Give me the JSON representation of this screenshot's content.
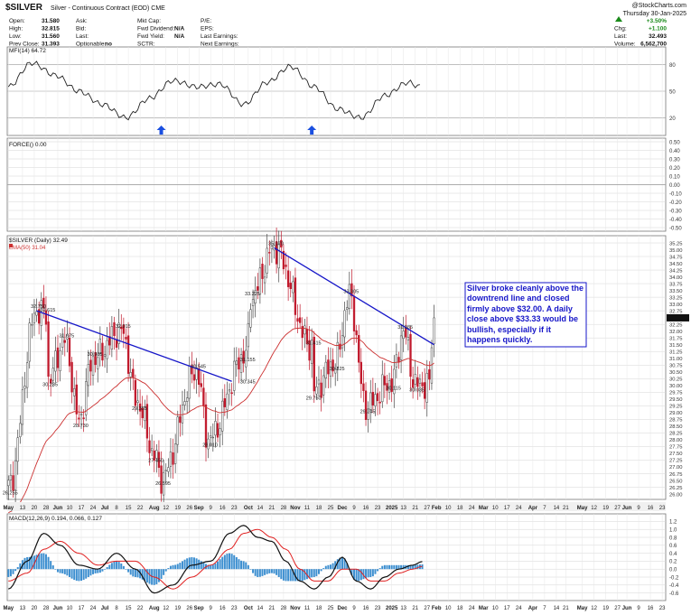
{
  "header": {
    "symbol": "$SILVER",
    "desc": "Silver - Continuous Contract (EOD) CME",
    "brand": "@StockCharts.com",
    "date": "Thursday 30-Jan-2025",
    "stats": [
      {
        "label": "Open:",
        "value": "31.580"
      },
      {
        "label": "High:",
        "value": "32.815"
      },
      {
        "label": "Low:",
        "value": "31.560"
      },
      {
        "label": "Prev Close:",
        "value": "31.393"
      }
    ],
    "quote": [
      {
        "label": "Ask:",
        "value": ""
      },
      {
        "label": "Bid:",
        "value": ""
      },
      {
        "label": "Last:",
        "value": ""
      },
      {
        "label": "Optionable:",
        "value": "no"
      }
    ],
    "fund": [
      {
        "label": "Mkt Cap:",
        "value": ""
      },
      {
        "label": "Fwd Dividend:",
        "value": "N/A"
      },
      {
        "label": "Fwd Yield:",
        "value": "N/A"
      },
      {
        "label": "SCTR:",
        "value": ""
      }
    ],
    "ratios": [
      {
        "label": "P/E:",
        "value": ""
      },
      {
        "label": "EPS:",
        "value": ""
      },
      {
        "label": "Last Earnings:",
        "value": ""
      },
      {
        "label": "Next Earnings:",
        "value": ""
      }
    ],
    "right": [
      {
        "label": "",
        "value": "+3.50%"
      },
      {
        "label": "Chg:",
        "value": "+1.100"
      },
      {
        "label": "Last:",
        "value": "32.493"
      },
      {
        "label": "Volume:",
        "value": "6,562,700"
      }
    ]
  },
  "colors": {
    "up": "#d0d0d0",
    "down": "#c0182b",
    "trend": "#1515c8",
    "ema": "#cc3030",
    "macd": "#111111",
    "signal": "#e02020",
    "hist": "#3d8fd0",
    "arrow": "#1a4fe0",
    "grid": "#d6d6d6"
  },
  "annotation": "Silver broke cleanly above the downtrend line and closed firmly above $32.00. A daily close above $33.33 would be bullish, especially if it happens quickly.",
  "chart_data": [
    {
      "type": "line",
      "panel": "MFI",
      "legend": "MFI(14) 64.72",
      "y_ticks": [
        20,
        50,
        80
      ],
      "series": [
        {
          "name": "MFI(14)",
          "x": [
            0,
            10,
            20,
            30,
            40,
            50,
            60,
            70,
            80,
            90,
            100,
            110,
            120,
            130,
            140,
            150,
            160,
            170,
            175
          ],
          "values": [
            55,
            82,
            68,
            50,
            35,
            20,
            42,
            62,
            55,
            58,
            35,
            60,
            78,
            55,
            30,
            20,
            45,
            60,
            55
          ]
        }
      ]
    },
    {
      "type": "line",
      "panel": "FORCE",
      "legend": "FORCE() 0.00",
      "y_ticks": [
        0.5,
        0.4,
        0.3,
        0.2,
        0.1,
        0.0,
        -0.1,
        -0.2,
        -0.3,
        -0.4,
        -0.5
      ],
      "series": [
        {
          "name": "FORCE()",
          "values": []
        }
      ]
    },
    {
      "type": "line",
      "panel": "Price",
      "legend": "$SILVER (Daily) 32.49",
      "legend2": "EMA(50) 31.04",
      "ylim": [
        26.0,
        35.25
      ],
      "y_ticks": [
        35.25,
        35.0,
        34.75,
        34.5,
        34.25,
        34.0,
        33.75,
        33.5,
        33.25,
        33.0,
        32.75,
        32.5,
        32.25,
        32.0,
        31.75,
        31.5,
        31.25,
        31.0,
        30.75,
        30.5,
        30.25,
        30.0,
        29.75,
        29.5,
        29.25,
        29.0,
        28.75,
        28.5,
        28.25,
        28.0,
        27.75,
        27.5,
        27.25,
        27.0,
        26.75,
        26.5,
        26.25,
        26.0
      ],
      "price_labels": [
        "26.255",
        "32.750",
        "32.615",
        "31.675",
        "30.985",
        "30.235",
        "28.730",
        "32.015",
        "29.355",
        "27.450",
        "26.595",
        "30.545",
        "28.010",
        "33.225",
        "31.155",
        "30.345",
        "35.070",
        "31.415",
        "29.750",
        "33.305",
        "30.825",
        "29.245",
        "31.985",
        "30.115",
        "30.035"
      ],
      "swing_points": [
        {
          "x": 0,
          "price": 26.255
        },
        {
          "x": 12,
          "price": 32.75
        },
        {
          "x": 16,
          "price": 32.615
        },
        {
          "x": 24,
          "price": 31.675
        },
        {
          "x": 36,
          "price": 30.985
        },
        {
          "x": 17,
          "price": 30.235
        },
        {
          "x": 30,
          "price": 28.73
        },
        {
          "x": 48,
          "price": 32.015
        },
        {
          "x": 55,
          "price": 29.355
        },
        {
          "x": 62,
          "price": 27.45
        },
        {
          "x": 65,
          "price": 26.595
        },
        {
          "x": 80,
          "price": 30.545
        },
        {
          "x": 85,
          "price": 28.01
        },
        {
          "x": 103,
          "price": 33.225
        },
        {
          "x": 101,
          "price": 31.155
        },
        {
          "x": 101,
          "price": 30.345
        },
        {
          "x": 113,
          "price": 35.07
        },
        {
          "x": 129,
          "price": 31.415
        },
        {
          "x": 129,
          "price": 29.75
        },
        {
          "x": 145,
          "price": 33.305
        },
        {
          "x": 139,
          "price": 30.825
        },
        {
          "x": 152,
          "price": 29.245
        },
        {
          "x": 168,
          "price": 31.985
        },
        {
          "x": 163,
          "price": 30.115
        },
        {
          "x": 173,
          "price": 30.035
        }
      ],
      "trendlines": [
        {
          "x": [
            12,
            95
          ],
          "price": [
            32.75,
            30.15
          ]
        },
        {
          "x": [
            113,
            181
          ],
          "price": [
            35.07,
            31.5
          ]
        }
      ],
      "last_price": 32.49,
      "ema_last": 31.04
    },
    {
      "type": "line",
      "panel": "MACD",
      "legend": "MACD(12,26,9) 0.194, 0.066, 0.127",
      "y_ticks": [
        1.2,
        1.0,
        0.8,
        0.6,
        0.4,
        0.2,
        0.0,
        -0.2,
        -0.4,
        -0.6
      ],
      "ylim": [
        -0.7,
        1.3
      ],
      "series": [
        {
          "name": "MACD",
          "x": [
            0,
            8,
            15,
            22,
            30,
            38,
            46,
            54,
            62,
            70,
            78,
            86,
            94,
            100,
            106,
            112,
            118,
            124,
            130,
            136,
            142,
            148,
            154,
            160,
            166,
            172,
            176
          ],
          "values": [
            -0.5,
            0.2,
            0.9,
            0.6,
            0.1,
            0.0,
            0.4,
            0.0,
            -0.6,
            -0.4,
            0.1,
            0.2,
            0.9,
            1.1,
            0.8,
            0.7,
            0.2,
            -0.3,
            -0.5,
            -0.2,
            0.3,
            -0.3,
            -0.5,
            -0.2,
            0.0,
            0.1,
            0.19
          ]
        },
        {
          "name": "Signal",
          "x": [
            0,
            8,
            15,
            22,
            30,
            38,
            46,
            54,
            62,
            70,
            78,
            86,
            94,
            100,
            106,
            112,
            118,
            124,
            130,
            136,
            142,
            148,
            154,
            160,
            166,
            172,
            176
          ],
          "values": [
            -0.3,
            -0.1,
            0.5,
            0.7,
            0.4,
            0.1,
            0.2,
            0.2,
            -0.2,
            -0.5,
            -0.2,
            0.1,
            0.5,
            0.9,
            1.0,
            0.8,
            0.5,
            0.0,
            -0.3,
            -0.3,
            0.0,
            0.0,
            -0.3,
            -0.3,
            -0.1,
            0.0,
            0.07
          ]
        }
      ]
    }
  ],
  "xaxis": {
    "labels": [
      {
        "x": 0,
        "text": "May"
      },
      {
        "x": 6,
        "text": "13"
      },
      {
        "x": 11,
        "text": "20"
      },
      {
        "x": 16,
        "text": "28"
      },
      {
        "x": 21,
        "text": "Jun"
      },
      {
        "x": 26,
        "text": "10"
      },
      {
        "x": 31,
        "text": "17"
      },
      {
        "x": 36,
        "text": "24"
      },
      {
        "x": 41,
        "text": "Jul"
      },
      {
        "x": 46,
        "text": "8"
      },
      {
        "x": 51,
        "text": "15"
      },
      {
        "x": 56,
        "text": "22"
      },
      {
        "x": 62,
        "text": "Aug"
      },
      {
        "x": 67,
        "text": "12"
      },
      {
        "x": 72,
        "text": "19"
      },
      {
        "x": 77,
        "text": "26"
      },
      {
        "x": 81,
        "text": "Sep"
      },
      {
        "x": 86,
        "text": "9"
      },
      {
        "x": 91,
        "text": "16"
      },
      {
        "x": 96,
        "text": "23"
      },
      {
        "x": 102,
        "text": "Oct"
      },
      {
        "x": 107,
        "text": "14"
      },
      {
        "x": 112,
        "text": "21"
      },
      {
        "x": 117,
        "text": "28"
      },
      {
        "x": 122,
        "text": "Nov"
      },
      {
        "x": 127,
        "text": "11"
      },
      {
        "x": 132,
        "text": "18"
      },
      {
        "x": 137,
        "text": "25"
      },
      {
        "x": 142,
        "text": "Dec"
      },
      {
        "x": 147,
        "text": "9"
      },
      {
        "x": 152,
        "text": "16"
      },
      {
        "x": 157,
        "text": "23"
      },
      {
        "x": 163,
        "text": "2025"
      },
      {
        "x": 168,
        "text": "13"
      },
      {
        "x": 173,
        "text": "21"
      },
      {
        "x": 178,
        "text": "27"
      },
      {
        "x": 182,
        "text": "Feb"
      },
      {
        "x": 187,
        "text": "10"
      },
      {
        "x": 192,
        "text": "18"
      },
      {
        "x": 197,
        "text": "24"
      },
      {
        "x": 202,
        "text": "Mar"
      },
      {
        "x": 207,
        "text": "10"
      },
      {
        "x": 212,
        "text": "17"
      },
      {
        "x": 217,
        "text": "24"
      },
      {
        "x": 223,
        "text": "Apr"
      },
      {
        "x": 228,
        "text": "7"
      },
      {
        "x": 233,
        "text": "14"
      },
      {
        "x": 237,
        "text": "21"
      },
      {
        "x": 244,
        "text": "May"
      },
      {
        "x": 249,
        "text": "12"
      },
      {
        "x": 254,
        "text": "19"
      },
      {
        "x": 259,
        "text": "27"
      },
      {
        "x": 263,
        "text": "Jun"
      },
      {
        "x": 268,
        "text": "9"
      },
      {
        "x": 273,
        "text": "16"
      },
      {
        "x": 278,
        "text": "23"
      }
    ]
  }
}
